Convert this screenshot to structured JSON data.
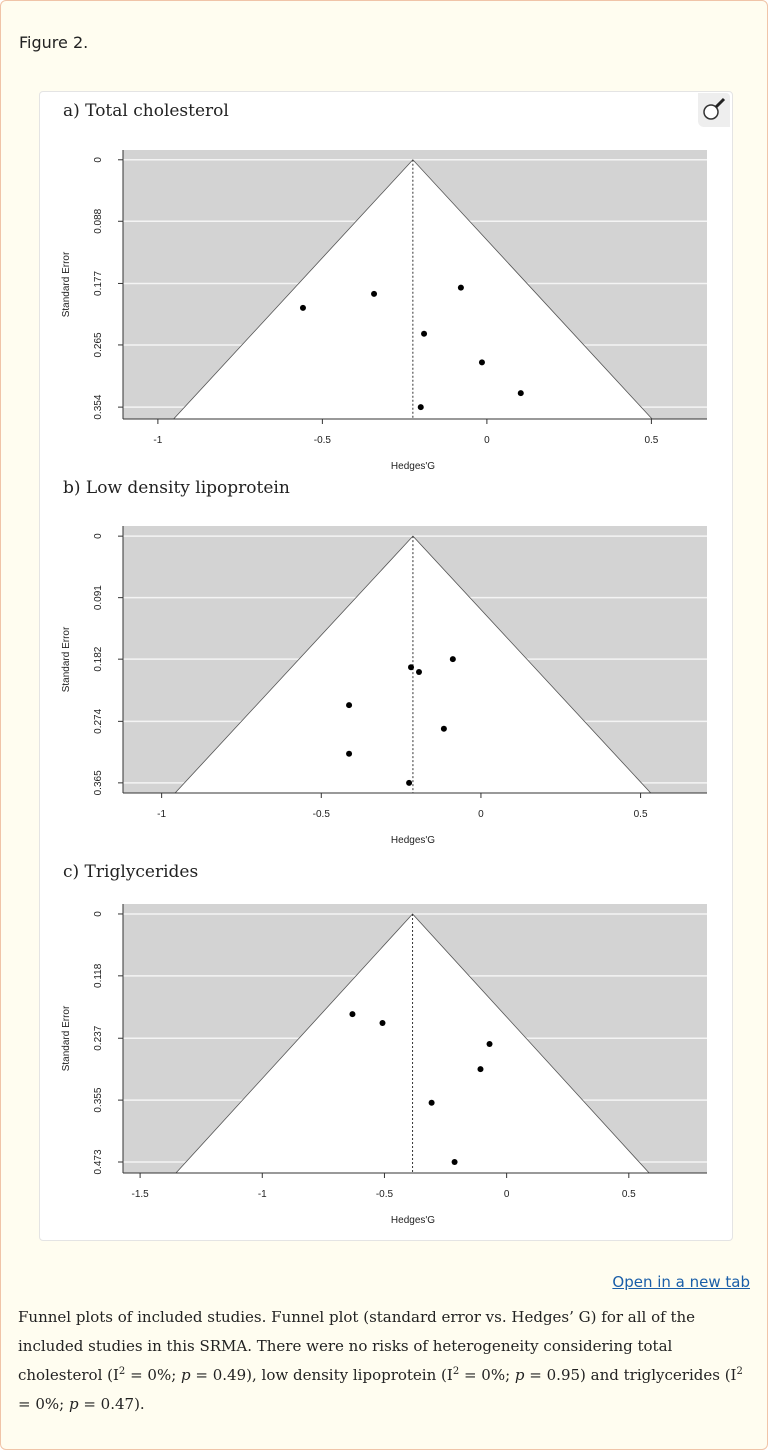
{
  "figure_label": "Figure 2.",
  "open_link": "Open in a new tab",
  "caption": {
    "p1": "Funnel plots of included studies. Funnel plot (standard error vs. Hedges’ G) for all of the included studies in this SRMA. There were no risks of heterogeneity considering total cholesterol (I",
    "p2": " = 0%; ",
    "p3": " = 0.49), low density lipoprotein (I",
    "p4": " = 0%; ",
    "p5": " = 0.95) and triglycerides (I",
    "p6": " = 0%; ",
    "p7": " = 0.47).",
    "sup": "2",
    "p": "p"
  },
  "colors": {
    "shade": "#d3d3d3",
    "link": "#1a5ea8",
    "background": "#fffdf0",
    "border": "#f0c4a8"
  },
  "chart_data": [
    {
      "type": "scatter",
      "title": "a) Total cholesterol",
      "xlabel": "Hedges'G",
      "ylabel": "Standard Error",
      "xticks": [
        -1,
        -0.5,
        0,
        0.5
      ],
      "yticks": [
        0,
        0.088,
        0.177,
        0.265,
        0.354
      ],
      "ytick_labels": [
        "0",
        "0.088",
        "0.177",
        "0.265",
        "0.354"
      ],
      "xlim": [
        -1.106,
        0.669
      ],
      "ylim": [
        0.371,
        -0.014
      ],
      "summary_effect": -0.225,
      "points": [
        {
          "x": -0.559,
          "y": 0.212
        },
        {
          "x": -0.343,
          "y": 0.192
        },
        {
          "x": -0.079,
          "y": 0.183
        },
        {
          "x": -0.191,
          "y": 0.249
        },
        {
          "x": -0.015,
          "y": 0.29
        },
        {
          "x": 0.103,
          "y": 0.334
        },
        {
          "x": -0.201,
          "y": 0.354
        }
      ]
    },
    {
      "type": "scatter",
      "title": "b) Low density lipoprotein",
      "xlabel": "Hedges'G",
      "ylabel": "Standard Error",
      "xticks": [
        -1,
        -0.5,
        0,
        0.5
      ],
      "yticks": [
        0,
        0.091,
        0.182,
        0.274,
        0.365
      ],
      "ytick_labels": [
        "0",
        "0.091",
        "0.182",
        "0.274",
        "0.365"
      ],
      "xlim": [
        -1.121,
        0.708
      ],
      "ylim": [
        0.38,
        -0.015
      ],
      "summary_effect": -0.213,
      "points": [
        {
          "x": -0.219,
          "y": 0.194
        },
        {
          "x": -0.194,
          "y": 0.201
        },
        {
          "x": -0.088,
          "y": 0.182
        },
        {
          "x": -0.413,
          "y": 0.25
        },
        {
          "x": -0.116,
          "y": 0.285
        },
        {
          "x": -0.413,
          "y": 0.322
        },
        {
          "x": -0.225,
          "y": 0.365
        }
      ]
    },
    {
      "type": "scatter",
      "title": "c) Triglycerides",
      "xlabel": "Hedges'G",
      "ylabel": "Standard Error",
      "xticks": [
        -1.5,
        -1,
        -0.5,
        0,
        0.5
      ],
      "yticks": [
        0,
        0.118,
        0.237,
        0.355,
        0.473
      ],
      "ytick_labels": [
        "0",
        "0.118",
        "0.237",
        "0.355",
        "0.473"
      ],
      "xlim": [
        -1.57,
        0.82
      ],
      "ylim": [
        0.494,
        -0.019
      ],
      "summary_effect": -0.385,
      "points": [
        {
          "x": -0.631,
          "y": 0.191
        },
        {
          "x": -0.508,
          "y": 0.208
        },
        {
          "x": -0.07,
          "y": 0.248
        },
        {
          "x": -0.107,
          "y": 0.296
        },
        {
          "x": -0.307,
          "y": 0.36
        },
        {
          "x": -0.213,
          "y": 0.473
        }
      ]
    }
  ]
}
